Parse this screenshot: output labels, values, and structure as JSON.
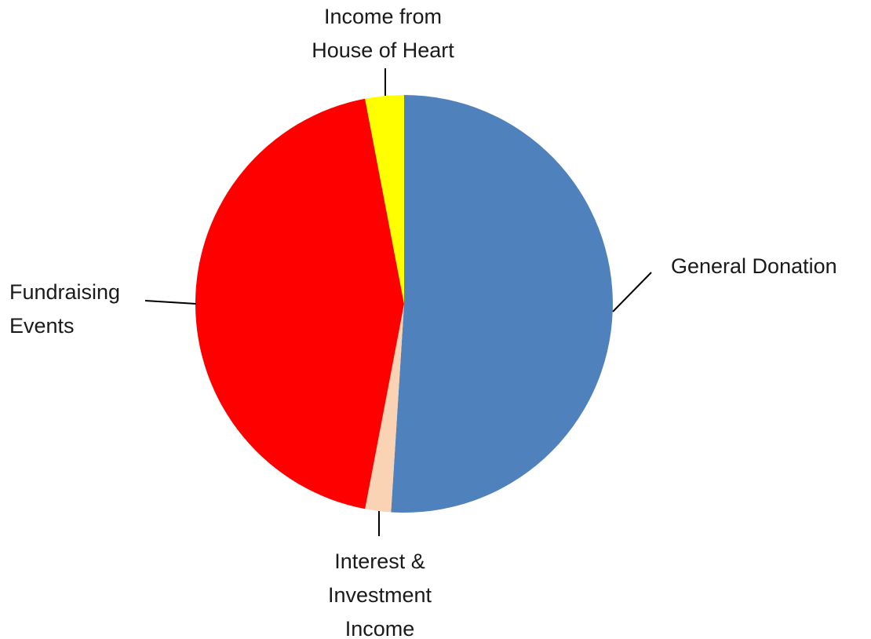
{
  "chart_data": {
    "type": "pie",
    "title": "",
    "slices": [
      {
        "label": "General Donation",
        "label_lines": [
          "General Donation"
        ],
        "value": 51.0,
        "color": "#4F81BD"
      },
      {
        "label": "Interest & Investment Income",
        "label_lines": [
          "Interest &",
          "Investment",
          "Income"
        ],
        "value": 2.0,
        "color": "#FAD3B4"
      },
      {
        "label": "Fundraising Events",
        "label_lines": [
          "Fundraising",
          "Events"
        ],
        "value": 44.0,
        "color": "#FF0000"
      },
      {
        "label": "Income from House of Heart",
        "label_lines": [
          "Income from",
          "House of Heart"
        ],
        "value": 3.0,
        "color": "#FFFF00"
      }
    ],
    "start_angle": "12 o'clock",
    "direction": "clockwise",
    "legend": "none",
    "data_labels": "category names with leader lines"
  }
}
